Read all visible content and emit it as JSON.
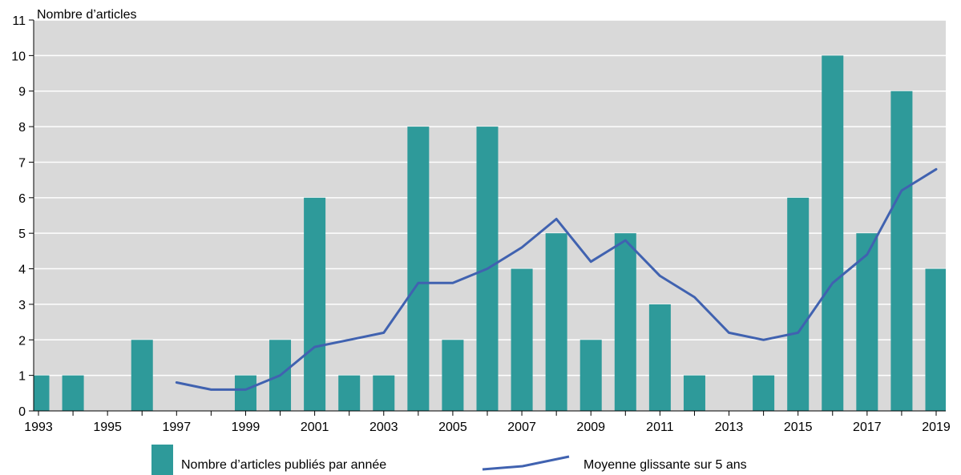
{
  "chart_data": {
    "type": "bar",
    "ylabel": "Nombre d’articles",
    "ylim": [
      0,
      11
    ],
    "yticks": [
      0,
      1,
      2,
      3,
      4,
      5,
      6,
      7,
      8,
      9,
      10,
      11
    ],
    "xlim": [
      1993,
      2019
    ],
    "xtick_labels": [
      "1993",
      "1995",
      "1997",
      "1999",
      "2001",
      "2003",
      "2005",
      "2007",
      "2009",
      "2011",
      "2013",
      "2015",
      "2017",
      "2019"
    ],
    "grid": true,
    "legend_position": "bottom",
    "colors": {
      "bars": "#2e9a9a",
      "line": "#4062b0",
      "plot_bg": "#d9d9d9"
    },
    "series": [
      {
        "name": "Nombre d’articles publiés par année",
        "type": "bar",
        "x": [
          1993,
          1994,
          1995,
          1996,
          1997,
          1998,
          1999,
          2000,
          2001,
          2002,
          2003,
          2004,
          2005,
          2006,
          2007,
          2008,
          2009,
          2010,
          2011,
          2012,
          2013,
          2014,
          2015,
          2016,
          2017,
          2018,
          2019
        ],
        "values": [
          1,
          1,
          0,
          2,
          0,
          0,
          1,
          2,
          6,
          1,
          1,
          8,
          2,
          8,
          4,
          5,
          2,
          5,
          3,
          1,
          0,
          1,
          6,
          10,
          5,
          9,
          4
        ]
      },
      {
        "name": "Moyenne glissante sur 5 ans",
        "type": "line",
        "x": [
          1997,
          1998,
          1999,
          2000,
          2001,
          2002,
          2003,
          2004,
          2005,
          2006,
          2007,
          2008,
          2009,
          2010,
          2011,
          2012,
          2013,
          2014,
          2015,
          2016,
          2017,
          2018,
          2019
        ],
        "values": [
          0.8,
          0.6,
          0.6,
          1.0,
          1.8,
          2.0,
          2.2,
          3.6,
          3.6,
          4.0,
          4.6,
          5.4,
          4.2,
          4.8,
          3.8,
          3.2,
          2.2,
          2.0,
          2.2,
          3.6,
          4.4,
          6.2,
          6.8
        ]
      }
    ]
  }
}
